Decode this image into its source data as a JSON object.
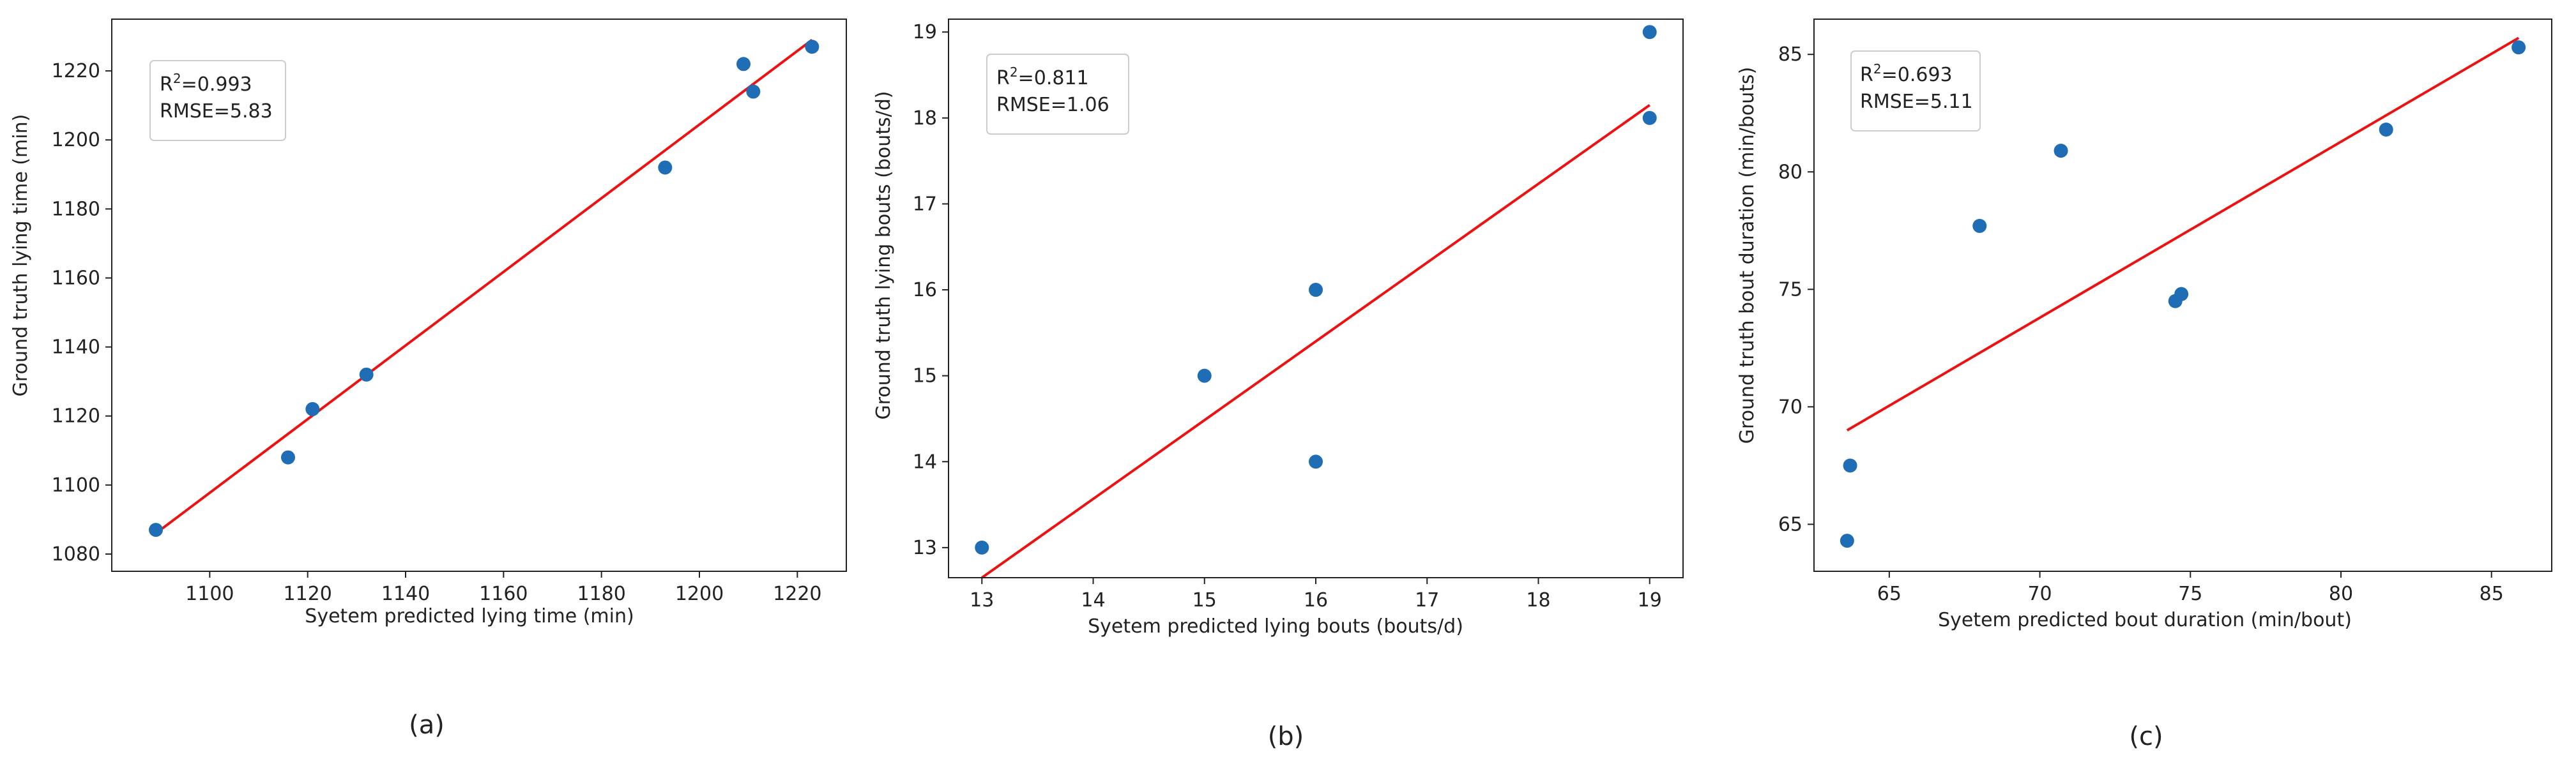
{
  "chart_data": [
    {
      "type": "scatter",
      "panel_label": "(a)",
      "xlabel": "Syetem predicted lying time (min)",
      "ylabel": "Ground truth lying time (min)",
      "xlim": [
        1080,
        1230
      ],
      "ylim": [
        1075,
        1235
      ],
      "xticks": [
        1100,
        1120,
        1140,
        1160,
        1180,
        1200,
        1220
      ],
      "yticks": [
        1080,
        1100,
        1120,
        1140,
        1160,
        1180,
        1200,
        1220
      ],
      "r2_label": "R",
      "r2_sup": "2",
      "r2_value": "=0.993",
      "rmse_text": "RMSE=5.83",
      "points": [
        {
          "x": 1089,
          "y": 1087
        },
        {
          "x": 1116,
          "y": 1108
        },
        {
          "x": 1121,
          "y": 1122
        },
        {
          "x": 1132,
          "y": 1132
        },
        {
          "x": 1193,
          "y": 1192
        },
        {
          "x": 1209,
          "y": 1222
        },
        {
          "x": 1211,
          "y": 1214
        },
        {
          "x": 1223,
          "y": 1227
        }
      ],
      "fit_line": [
        {
          "x": 1089,
          "y": 1086
        },
        {
          "x": 1223,
          "y": 1229
        }
      ],
      "point_color": "#1f6db5",
      "line_color": "#ee1111",
      "grid": false
    },
    {
      "type": "scatter",
      "panel_label": "(b)",
      "xlabel": "Syetem predicted lying bouts (bouts/d)",
      "ylabel": "Ground truth lying bouts (bouts/d)",
      "xlim": [
        12.7,
        19.3
      ],
      "ylim": [
        12.65,
        19.15
      ],
      "xticks": [
        13,
        14,
        15,
        16,
        17,
        18,
        19
      ],
      "yticks": [
        13,
        14,
        15,
        16,
        17,
        18,
        19
      ],
      "r2_label": "R",
      "r2_sup": "2",
      "r2_value": "=0.811",
      "rmse_text": "RMSE=1.06",
      "points": [
        {
          "x": 13,
          "y": 13
        },
        {
          "x": 15,
          "y": 15
        },
        {
          "x": 16,
          "y": 16
        },
        {
          "x": 16,
          "y": 14
        },
        {
          "x": 19,
          "y": 19
        },
        {
          "x": 19,
          "y": 18
        }
      ],
      "fit_line": [
        {
          "x": 13,
          "y": 12.65
        },
        {
          "x": 19,
          "y": 18.15
        }
      ],
      "point_color": "#1f6db5",
      "line_color": "#ee1111",
      "grid": false
    },
    {
      "type": "scatter",
      "panel_label": "(c)",
      "xlabel": "Syetem predicted bout duration (min/bout)",
      "ylabel": "Ground truth bout duration (min/bouts)",
      "xlim": [
        62.5,
        87
      ],
      "ylim": [
        63,
        86.5
      ],
      "xticks": [
        65,
        70,
        75,
        80,
        85
      ],
      "yticks": [
        65,
        70,
        75,
        80,
        85
      ],
      "r2_label": "R",
      "r2_sup": "2",
      "r2_value": "=0.693",
      "rmse_text": "RMSE=5.11",
      "points": [
        {
          "x": 63.7,
          "y": 67.5
        },
        {
          "x": 63.6,
          "y": 64.3
        },
        {
          "x": 68.0,
          "y": 77.7
        },
        {
          "x": 70.7,
          "y": 80.9
        },
        {
          "x": 74.5,
          "y": 74.5
        },
        {
          "x": 74.7,
          "y": 74.8
        },
        {
          "x": 81.5,
          "y": 81.8
        },
        {
          "x": 85.9,
          "y": 85.3
        }
      ],
      "fit_line": [
        {
          "x": 63.6,
          "y": 69.0
        },
        {
          "x": 85.9,
          "y": 85.7
        }
      ],
      "point_color": "#1f6db5",
      "line_color": "#ee1111",
      "grid": false
    }
  ]
}
